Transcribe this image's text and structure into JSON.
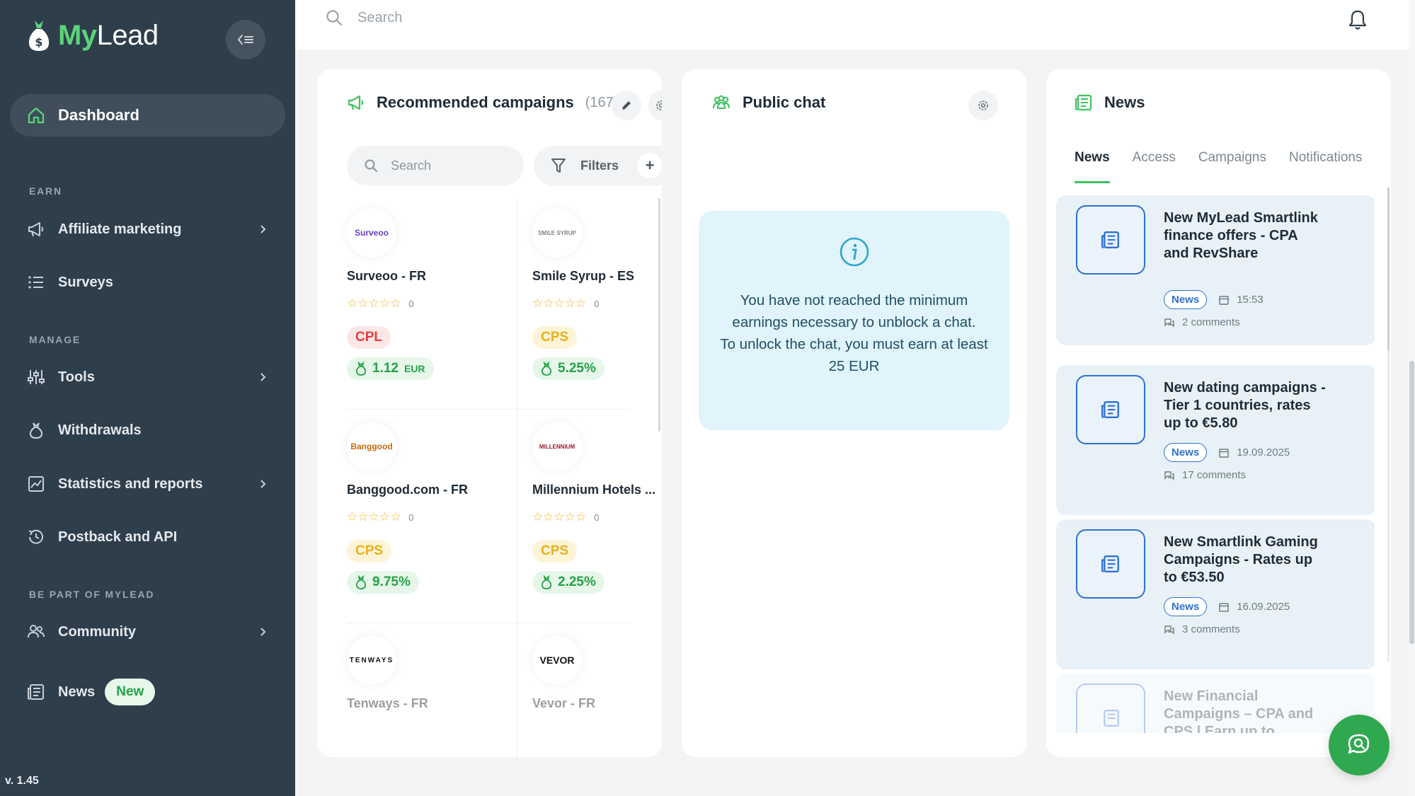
{
  "app": {
    "logo_my": "My",
    "logo_lead": "Lead",
    "version": "v. 1.45"
  },
  "colors": {
    "sidebar_bg": "#2f3e4b",
    "accent_green": "#3fc262",
    "news_blue": "#2f72d0"
  },
  "sidebar": {
    "dashboard": "Dashboard",
    "sections": {
      "earn": "EARN",
      "manage": "MANAGE",
      "be_part": "BE PART OF MYLEAD"
    },
    "items": [
      {
        "label": "Affiliate marketing",
        "icon": "megaphone-icon"
      },
      {
        "label": "Surveys",
        "icon": "list-icon"
      },
      {
        "label": "Tools",
        "icon": "sliders-icon"
      },
      {
        "label": "Withdrawals",
        "icon": "money-bag-icon"
      },
      {
        "label": "Statistics and reports",
        "icon": "chart-icon"
      },
      {
        "label": "Postback and API",
        "icon": "history-icon"
      },
      {
        "label": "Community",
        "icon": "users-icon"
      },
      {
        "label": "News",
        "icon": "newspaper-icon"
      }
    ],
    "news_badge": "New"
  },
  "topbar": {
    "search_placeholder": "Search"
  },
  "campaigns": {
    "title": "Recommended campaigns",
    "count": "(167)",
    "search_placeholder": "Search",
    "filters_label": "Filters",
    "add_label": "+",
    "items": [
      {
        "logo": "Surveoo",
        "name": "Surveoo - FR",
        "rating_count": "0",
        "type": "CPL",
        "payout": "1.12",
        "currency": "EUR"
      },
      {
        "logo": "SMILE SYRUP",
        "name": "Smile Syrup - ES",
        "rating_count": "0",
        "type": "CPS",
        "payout": "5.25%",
        "currency": ""
      },
      {
        "logo": "Banggood",
        "name": "Banggood.com - FR",
        "rating_count": "0",
        "type": "CPS",
        "payout": "9.75%",
        "currency": ""
      },
      {
        "logo": "MILLENNIUM",
        "name": "Millennium Hotels ...",
        "rating_count": "0",
        "type": "CPS",
        "payout": "2.25%",
        "currency": ""
      },
      {
        "logo": "TENWAYS",
        "name": "Tenways - FR"
      },
      {
        "logo": "VEVOR",
        "name": "Vevor - FR"
      }
    ]
  },
  "chat": {
    "title": "Public chat",
    "message_line1": "You have not reached the minimum earnings necessary to unblock a chat.",
    "message_line2": "To unlock the chat, you must earn at least 25 EUR"
  },
  "news": {
    "title": "News",
    "tabs": [
      "News",
      "Access",
      "Campaigns",
      "Notifications"
    ],
    "items": [
      {
        "title": "New MyLead Smartlink finance offers - CPA and RevShare",
        "badge": "News",
        "date": "15:53",
        "comments": "2 comments"
      },
      {
        "title": "New dating campaigns - Tier 1 countries, rates up to €5.80",
        "badge": "News",
        "date": "19.09.2025",
        "comments": "17 comments"
      },
      {
        "title": "New Smartlink Gaming Campaigns - Rates up to €53.50",
        "badge": "News",
        "date": "16.09.2025",
        "comments": "3 comments"
      },
      {
        "title": "New Financial Campaigns – CPA and CPS | Earn up to"
      }
    ]
  }
}
